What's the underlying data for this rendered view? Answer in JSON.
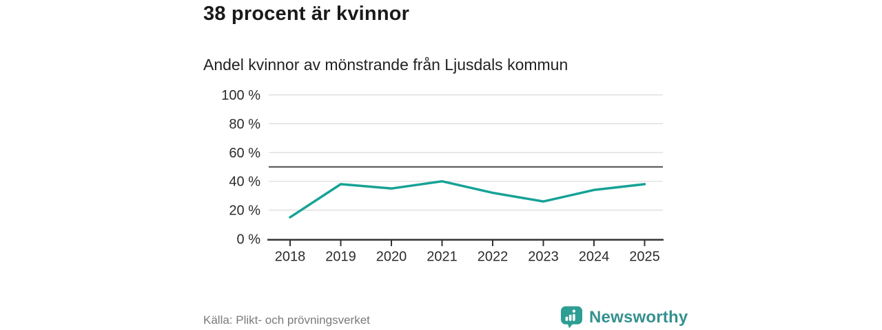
{
  "header": {
    "title": "38 procent är kvinnor",
    "subtitle": "Andel kvinnor av mönstrande från Ljusdals kommun"
  },
  "footer": {
    "source": "Källa: Plikt- och prövningsverket",
    "logo_text": "Newsworthy",
    "logo_icon": "speech-bubble-bar-chart"
  },
  "chart_data": {
    "type": "line",
    "title": "38 procent är kvinnor",
    "subtitle": "Andel kvinnor av mönstrande från Ljusdals kommun",
    "x": [
      "2018",
      "2019",
      "2020",
      "2021",
      "2022",
      "2023",
      "2024",
      "2025"
    ],
    "series": [
      {
        "name": "Andel kvinnor av mönstrande",
        "values": [
          15,
          38,
          35,
          40,
          32,
          26,
          34,
          38
        ]
      }
    ],
    "unit": "%",
    "xlabel": "",
    "ylabel": "",
    "ylim": [
      0,
      100
    ],
    "yticks": [
      {
        "value": 0,
        "label": "0 %"
      },
      {
        "value": 20,
        "label": "20 %"
      },
      {
        "value": 40,
        "label": "40 %"
      },
      {
        "value": 60,
        "label": "60 %"
      },
      {
        "value": 80,
        "label": "80 %"
      },
      {
        "value": 100,
        "label": "100 %"
      }
    ],
    "reference_line": 50,
    "grid": true,
    "legend_position": "none",
    "colors": {
      "line": "#16a296",
      "grid": "#d9d9d9",
      "reference": "#4d4d4d",
      "axis": "#333333",
      "brand": "#2e9e94"
    }
  }
}
